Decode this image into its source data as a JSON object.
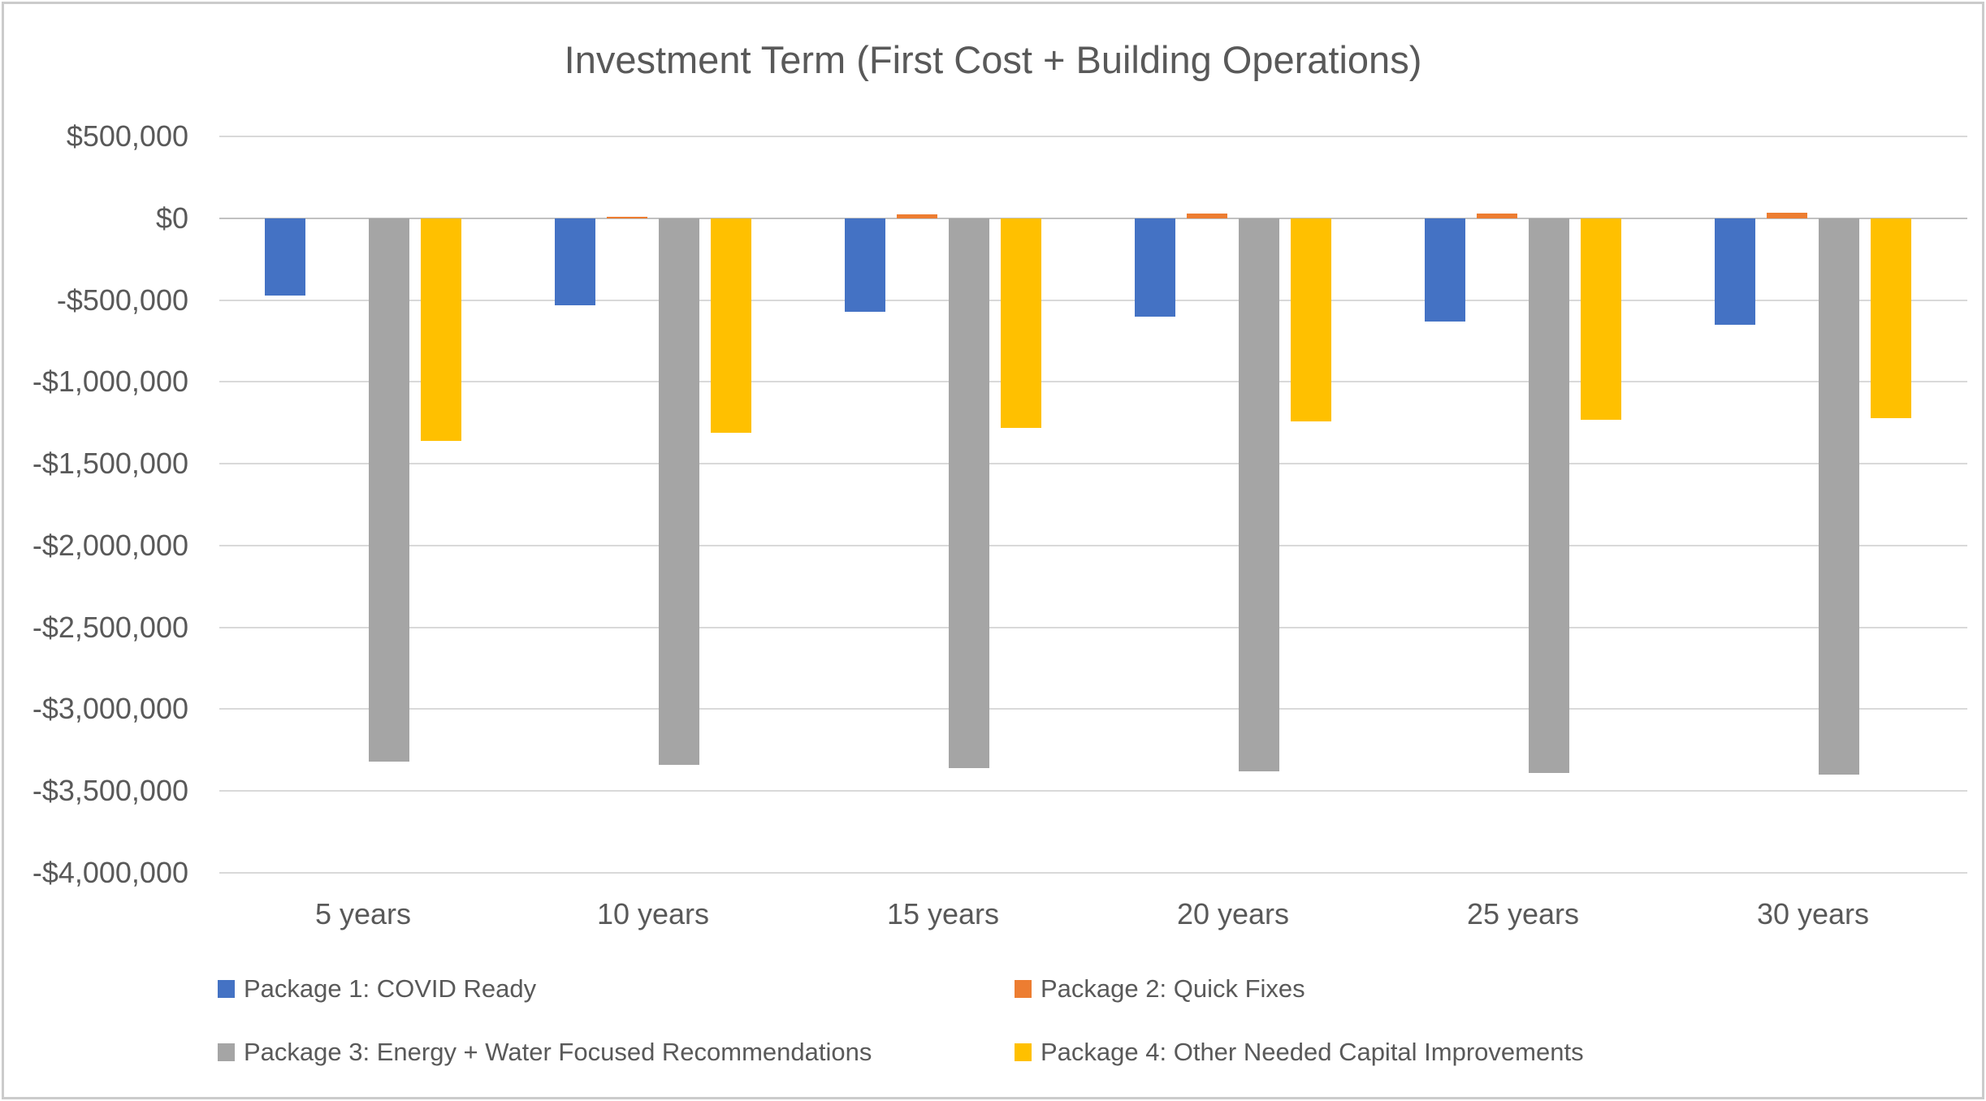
{
  "title": "Investment Term (First Cost + Building Operations)",
  "chart_data": {
    "type": "bar",
    "title": "Investment Term (First Cost + Building Operations)",
    "categories": [
      "5 years",
      "10 years",
      "15 years",
      "20 years",
      "25 years",
      "30 years"
    ],
    "series": [
      {
        "name": "Package 1: COVID Ready",
        "color": "#4472C4",
        "values": [
          -470000,
          -530000,
          -570000,
          -600000,
          -630000,
          -650000
        ]
      },
      {
        "name": "Package 2: Quick Fixes",
        "color": "#ED7D31",
        "values": [
          0,
          10000,
          25000,
          30000,
          30000,
          35000
        ]
      },
      {
        "name": "Package 3: Energy + Water Focused Recommendations",
        "color": "#A5A5A5",
        "values": [
          -3320000,
          -3340000,
          -3360000,
          -3380000,
          -3390000,
          -3400000
        ]
      },
      {
        "name": "Package 4: Other Needed Capital Improvements",
        "color": "#FFC000",
        "values": [
          -1360000,
          -1310000,
          -1280000,
          -1240000,
          -1230000,
          -1220000
        ]
      }
    ],
    "ylim": [
      -4000000,
      500000
    ],
    "yticks": [
      {
        "value": 500000,
        "label": "$500,000"
      },
      {
        "value": 0,
        "label": "$0"
      },
      {
        "value": -500000,
        "label": "-$500,000"
      },
      {
        "value": -1000000,
        "label": "-$1,000,000"
      },
      {
        "value": -1500000,
        "label": "-$1,500,000"
      },
      {
        "value": -2000000,
        "label": "-$2,000,000"
      },
      {
        "value": -2500000,
        "label": "-$2,500,000"
      },
      {
        "value": -3000000,
        "label": "-$3,000,000"
      },
      {
        "value": -3500000,
        "label": "-$3,500,000"
      },
      {
        "value": -4000000,
        "label": "-$4,000,000"
      }
    ],
    "grid": true,
    "legend_position": "bottom",
    "text_color": "#595959",
    "gridline_color": "#D9D9D9",
    "zero_line_color": "#C1C1C1"
  }
}
